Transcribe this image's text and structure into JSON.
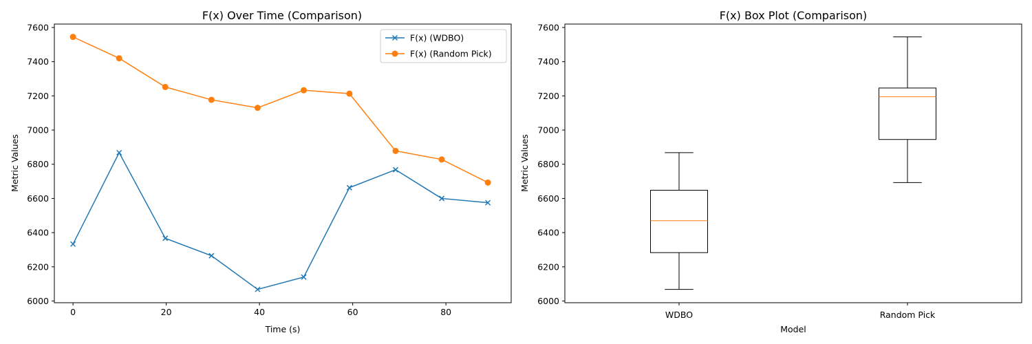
{
  "colors": {
    "wdbo": "#1f77b4",
    "random_pick": "#ff7f0e",
    "median": "#ff7f0e",
    "box": "#000000"
  },
  "chart_data": [
    {
      "type": "line",
      "title": "F(x) Over Time (Comparison)",
      "xlabel": "Time (s)",
      "ylabel": "Metric Values",
      "xlim": [
        -4,
        94
      ],
      "ylim": [
        5990,
        7620
      ],
      "xticks": [
        0,
        20,
        40,
        60,
        80
      ],
      "yticks": [
        6000,
        6200,
        6400,
        6600,
        6800,
        7000,
        7200,
        7400,
        7600
      ],
      "grid": false,
      "legend_position": "upper right",
      "series": [
        {
          "name": "F(x) (WDBO)",
          "marker": "x",
          "color": "#1f77b4",
          "x": [
            0,
            9.9,
            19.8,
            29.7,
            39.6,
            49.5,
            59.3,
            69.2,
            79.1,
            89.0
          ],
          "y": [
            6333,
            6868,
            6367,
            6265,
            6068,
            6140,
            6663,
            6768,
            6600,
            6575
          ]
        },
        {
          "name": "F(x) (Random Pick)",
          "marker": "o",
          "color": "#ff7f0e",
          "x": [
            0,
            9.9,
            19.8,
            29.7,
            39.6,
            49.5,
            59.3,
            69.2,
            79.1,
            89.0
          ],
          "y": [
            7545,
            7420,
            7252,
            7177,
            7130,
            7233,
            7213,
            6878,
            6828,
            6693
          ]
        }
      ]
    },
    {
      "type": "box",
      "title": "F(x) Box Plot (Comparison)",
      "xlabel": "Model",
      "ylabel": "Metric Values",
      "ylim": [
        5990,
        7620
      ],
      "yticks": [
        6000,
        6200,
        6400,
        6600,
        6800,
        7000,
        7200,
        7400,
        7600
      ],
      "categories": [
        "WDBO",
        "Random Pick"
      ],
      "grid": false,
      "boxes": [
        {
          "name": "WDBO",
          "min": 6068,
          "q1": 6283,
          "median": 6470,
          "q3": 6648,
          "max": 6868
        },
        {
          "name": "Random Pick",
          "min": 6693,
          "q1": 6945,
          "median": 7195,
          "q3": 7246,
          "max": 7545
        }
      ]
    }
  ]
}
